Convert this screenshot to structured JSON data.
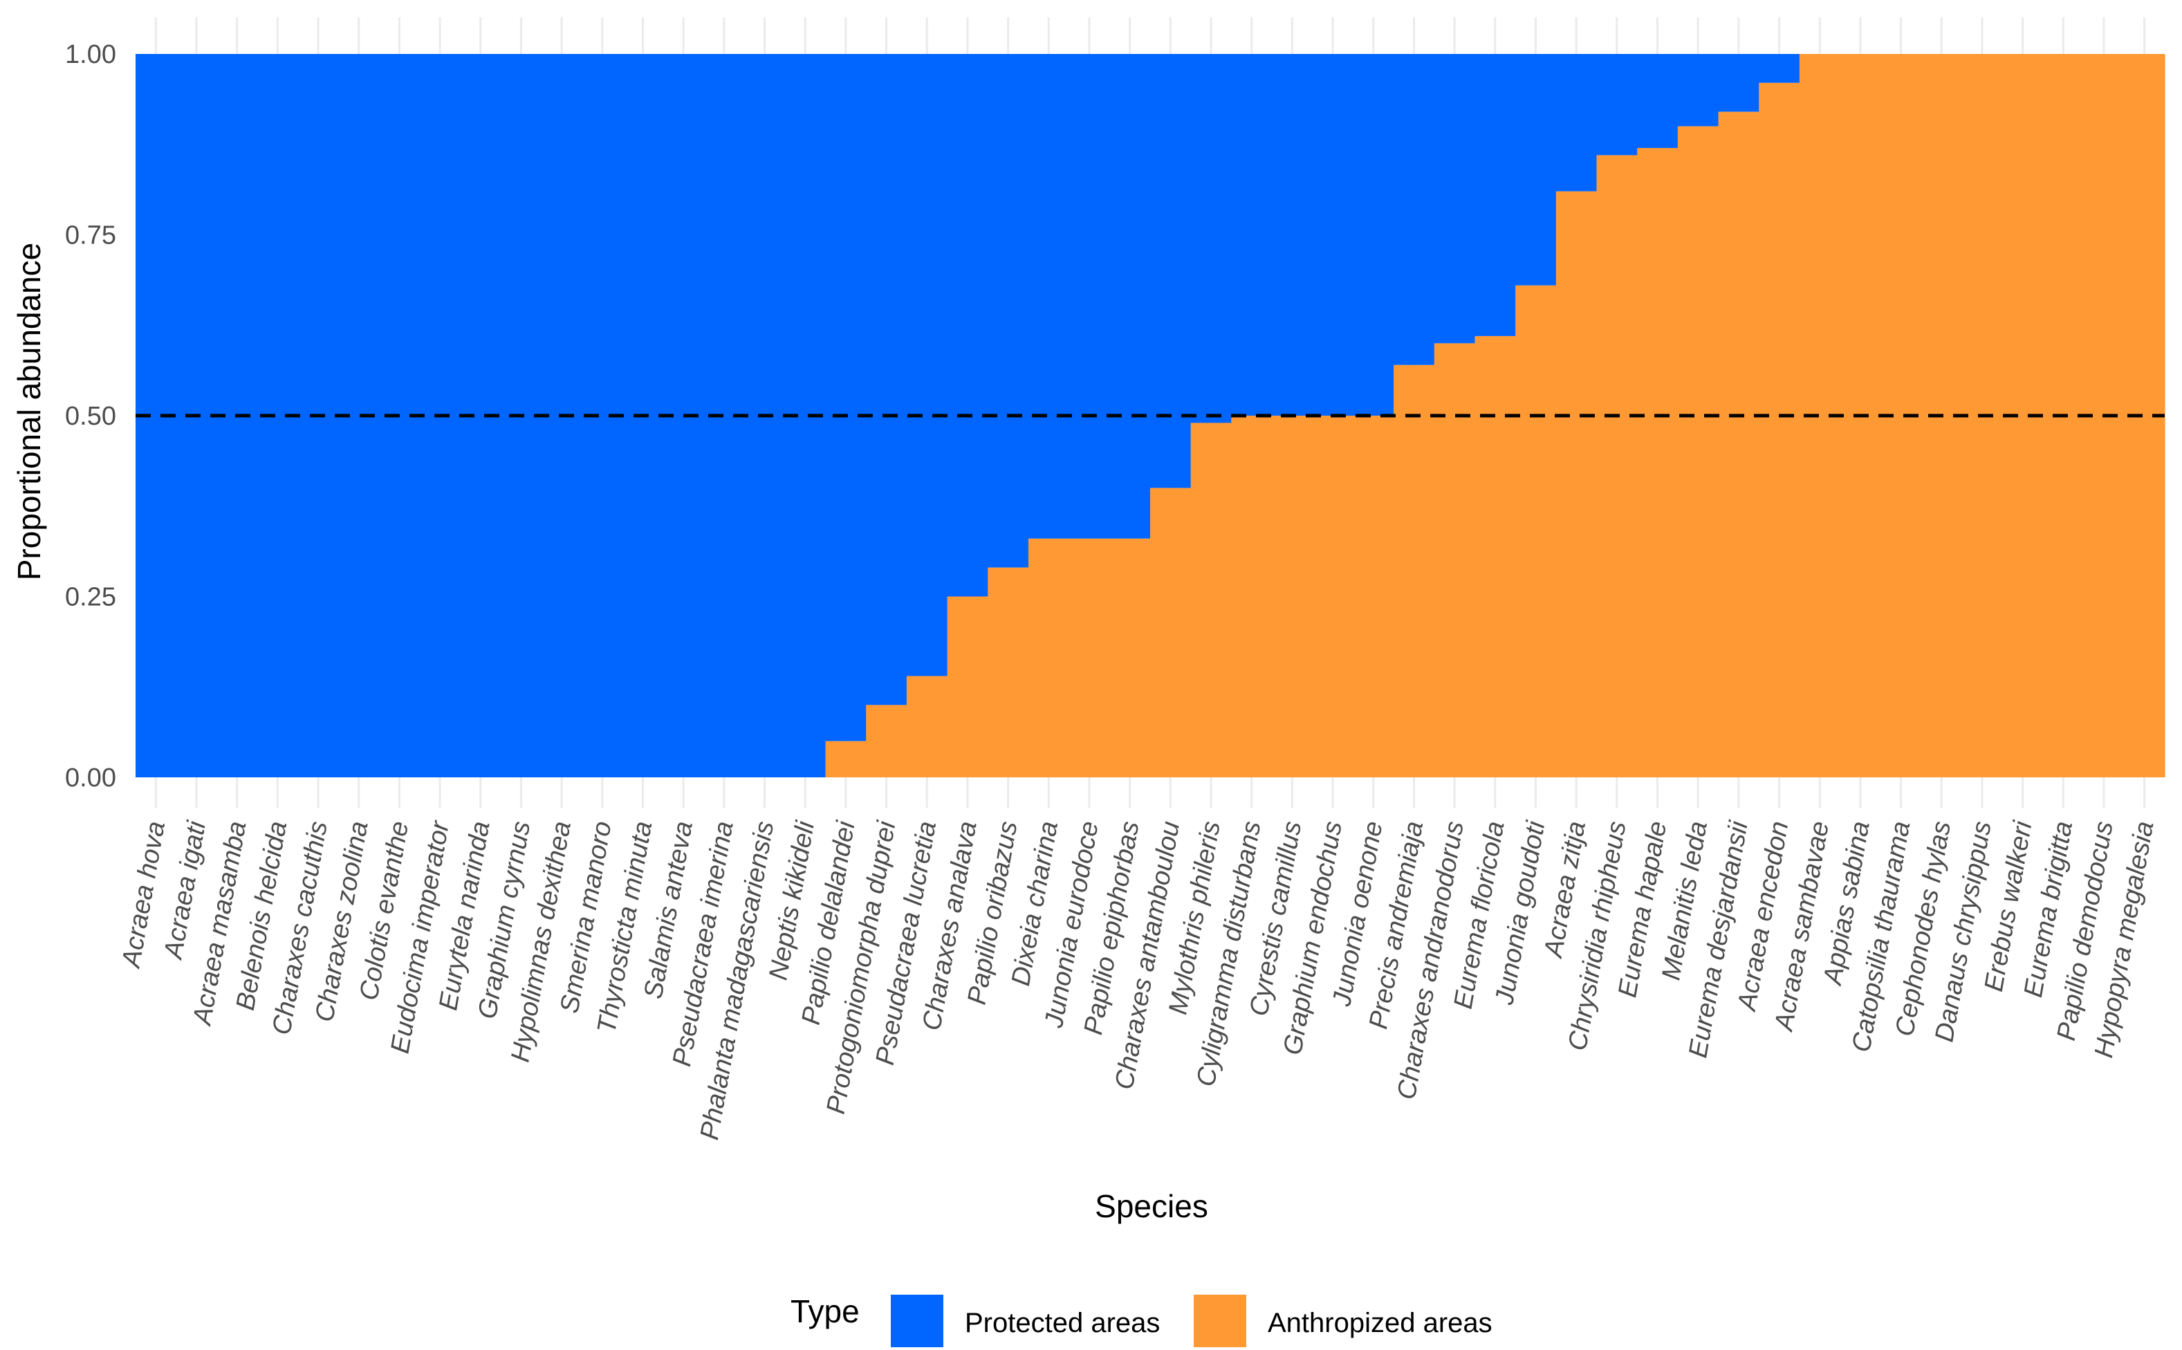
{
  "colors": {
    "protected": "#0066FF",
    "anthropized": "#FF9933",
    "grid": "#ebebeb",
    "reference_line": "#000000"
  },
  "chart_data": {
    "type": "bar",
    "stacked": true,
    "title": "",
    "xlabel": "Species",
    "ylabel": "Proportional abundance",
    "ylim": [
      0,
      1
    ],
    "yticks": [
      "0.00",
      "0.25",
      "0.50",
      "0.75",
      "1.00"
    ],
    "reference_line": {
      "y": 0.5,
      "style": "dashed"
    },
    "categories": [
      "Acraea hova",
      "Acraea igati",
      "Acraea masamba",
      "Belenois helcida",
      "Charaxes cacuthis",
      "Charaxes zoolina",
      "Colotis evanthe",
      "Eudocima imperator",
      "Eurytela narinda",
      "Graphium cyrnus",
      "Hypolimnas dexithea",
      "Smerina manoro",
      "Thyrosticta minuta",
      "Salamis anteva",
      "Pseudacraea imerina",
      "Phalanta madagascariensis",
      "Neptis kikideli",
      "Papilio delalandei",
      "Protogoniomorpha duprei",
      "Pseudacraea lucretia",
      "Charaxes analava",
      "Papilio oribazus",
      "Dixeia charina",
      "Junonia eurodoce",
      "Papilio epiphorbas",
      "Charaxes antamboulou",
      "Mylothris phileris",
      "Cyligramma disturbans",
      "Cyrestis camillus",
      "Graphium endochus",
      "Junonia oenone",
      "Precis andremiaja",
      "Charaxes andranodorus",
      "Eurema floricola",
      "Junonia goudoti",
      "Acraea zitja",
      "Chrysiridia rhipheus",
      "Eurema hapale",
      "Melanitis leda",
      "Eurema desjardansii",
      "Acraea encedon",
      "Acraea sambavae",
      "Appias sabina",
      "Catopsilia thaurama",
      "Cephonodes hylas",
      "Danaus chrysippus",
      "Erebus walkeri",
      "Eurema brigitta",
      "Papilio demodocus",
      "Hypopyra megalesia"
    ],
    "series": [
      {
        "name": "Anthropized areas",
        "values": [
          0,
          0,
          0,
          0,
          0,
          0,
          0,
          0,
          0,
          0,
          0,
          0,
          0,
          0,
          0,
          0,
          0,
          0.05,
          0.1,
          0.14,
          0.25,
          0.29,
          0.33,
          0.33,
          0.33,
          0.4,
          0.49,
          0.5,
          0.5,
          0.5,
          0.5,
          0.57,
          0.6,
          0.61,
          0.68,
          0.81,
          0.86,
          0.87,
          0.9,
          0.92,
          0.96,
          1,
          1,
          1,
          1,
          1,
          1,
          1,
          1,
          1
        ]
      },
      {
        "name": "Protected areas",
        "values": [
          1,
          1,
          1,
          1,
          1,
          1,
          1,
          1,
          1,
          1,
          1,
          1,
          1,
          1,
          1,
          1,
          1,
          0.95,
          0.9,
          0.86,
          0.75,
          0.71,
          0.67,
          0.67,
          0.67,
          0.6,
          0.51,
          0.5,
          0.5,
          0.5,
          0.5,
          0.43,
          0.4,
          0.39,
          0.32,
          0.19,
          0.14,
          0.13,
          0.1,
          0.08,
          0.04,
          0,
          0,
          0,
          0,
          0,
          0,
          0,
          0,
          0
        ]
      }
    ],
    "legend": {
      "title": "Type",
      "position": "bottom",
      "items": [
        "Protected areas",
        "Anthropized areas"
      ]
    }
  }
}
